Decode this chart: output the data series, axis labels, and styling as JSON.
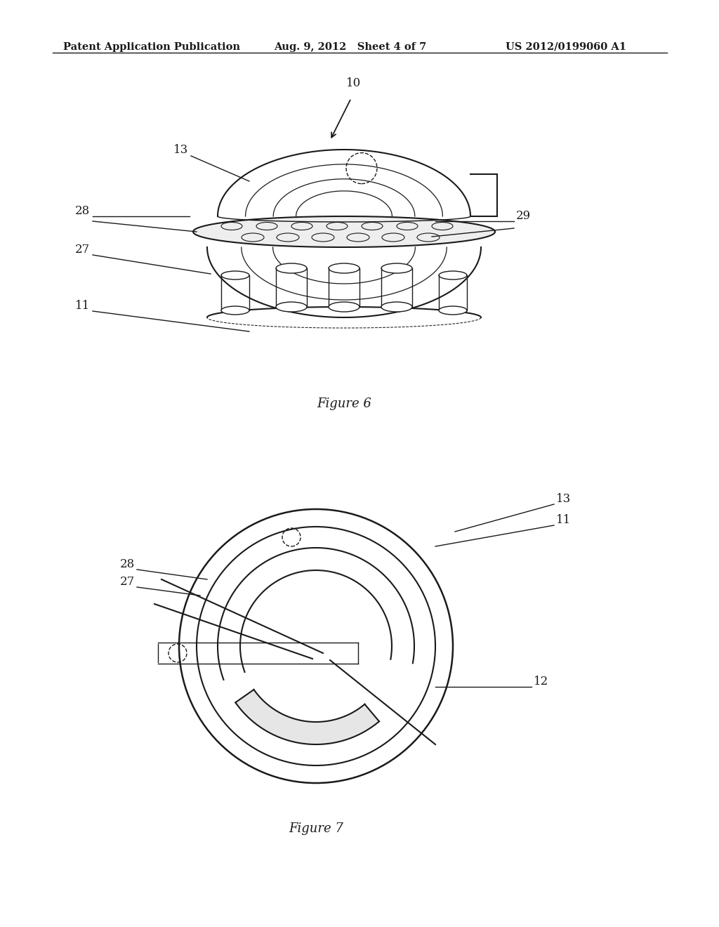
{
  "background_color": "#ffffff",
  "header_left": "Patent Application Publication",
  "header_mid": "Aug. 9, 2012   Sheet 4 of 7",
  "header_right": "US 2012/0199060 A1",
  "fig6_caption": "Figure 6",
  "fig7_caption": "Figure 7",
  "color": "#1a1a1a"
}
